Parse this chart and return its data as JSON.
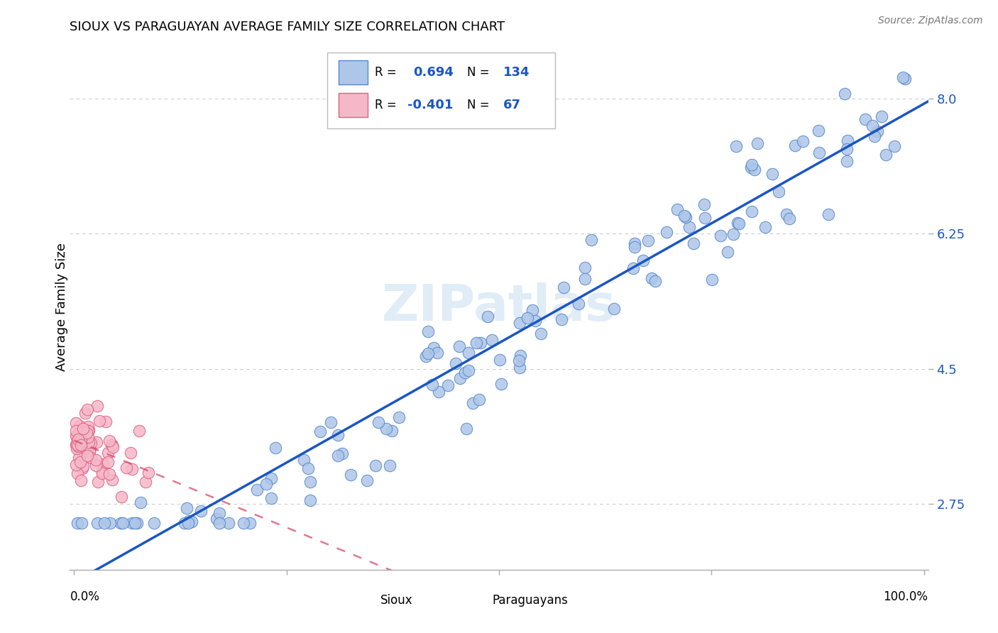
{
  "title": "SIOUX VS PARAGUAYAN AVERAGE FAMILY SIZE CORRELATION CHART",
  "source": "Source: ZipAtlas.com",
  "ylabel": "Average Family Size",
  "yticks": [
    2.75,
    4.5,
    6.25,
    8.0
  ],
  "sioux_R": 0.694,
  "sioux_N": 134,
  "paraguayan_R": -0.401,
  "paraguayan_N": 67,
  "sioux_color": "#aec6e8",
  "sioux_edge_color": "#5588cc",
  "sioux_line_color": "#1a56c4",
  "paraguayan_color": "#f5b8c8",
  "paraguayan_edge_color": "#e06080",
  "paraguayan_line_color": "#d44060",
  "background_color": "#ffffff",
  "grid_color": "#cccccc",
  "tick_label_color": "#1a56c4",
  "watermark_color": "#c8ddf0",
  "watermark_text": "ZIPatlas"
}
